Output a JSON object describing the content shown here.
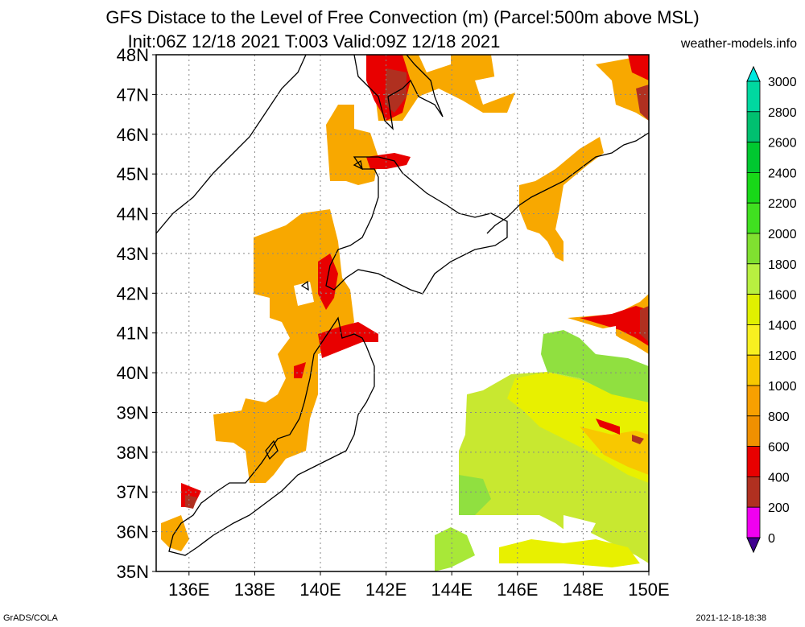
{
  "title_line1": "GFS Distace to the Level of Free Convection (m) (Parcel:500m above MSL)",
  "title_line2": "Init:06Z 12/18 2021 T:003 Valid:09Z 12/18 2021",
  "site": "weather-models.info",
  "footer_left": "GrADS/COLA",
  "footer_right": "2021-12-18-18:38",
  "map": {
    "lat_labels": [
      "48N",
      "47N",
      "46N",
      "45N",
      "44N",
      "43N",
      "42N",
      "41N",
      "40N",
      "39N",
      "38N",
      "37N",
      "36N",
      "35N"
    ],
    "lon_labels": [
      "136E",
      "138E",
      "140E",
      "142E",
      "144E",
      "146E",
      "148E",
      "150E"
    ]
  },
  "colorbar": {
    "levels": [
      "3000",
      "2800",
      "2600",
      "2400",
      "2200",
      "2000",
      "1800",
      "1600",
      "1400",
      "1200",
      "1000",
      "800",
      "600",
      "400",
      "200",
      "0"
    ],
    "colors": [
      "#00e8e0",
      "#00d8a0",
      "#00c070",
      "#00c830",
      "#18d818",
      "#40e020",
      "#80e030",
      "#b8f040",
      "#e0f000",
      "#f8f020",
      "#f8c800",
      "#f8a000",
      "#f09000",
      "#e80000",
      "#b03020",
      "#f000f0",
      "#400090"
    ]
  }
}
